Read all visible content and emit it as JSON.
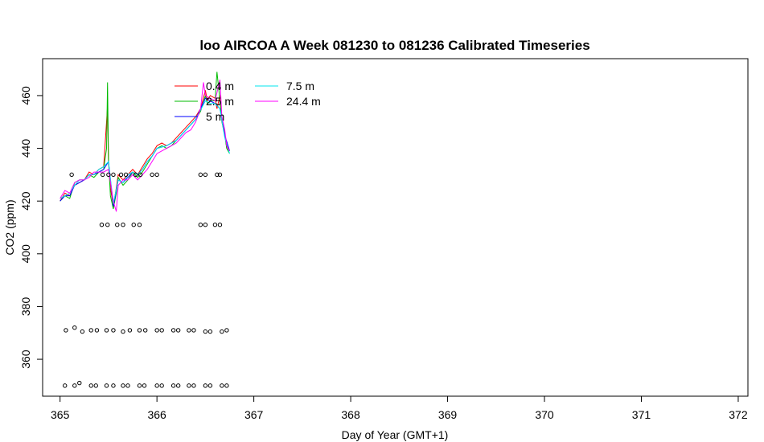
{
  "chart_data": {
    "type": "line",
    "title": "loo AIRCOA A  Week 081230 to 081236  Calibrated Timeseries",
    "xlabel": "Day of Year (GMT+1)",
    "ylabel": "CO2 (ppm)",
    "xlim": [
      364.82,
      372.1
    ],
    "ylim": [
      346,
      474
    ],
    "x_ticks": [
      365,
      366,
      367,
      368,
      369,
      370,
      371,
      372
    ],
    "y_ticks": [
      360,
      380,
      400,
      420,
      440,
      460
    ],
    "grid": false,
    "legend_position": "top-left",
    "series": [
      {
        "name": "0.4 m",
        "color": "#ff0000",
        "x": [
          365.0,
          365.05,
          365.1,
          365.15,
          365.2,
          365.25,
          365.3,
          365.35,
          365.4,
          365.45,
          365.48,
          365.49,
          365.5,
          365.52,
          365.55,
          365.58,
          365.6,
          365.65,
          365.7,
          365.75,
          365.8,
          365.85,
          365.9,
          365.95,
          366.0,
          366.05,
          366.1,
          366.15,
          366.2,
          366.25,
          366.3,
          366.35,
          366.4,
          366.45,
          366.5,
          366.52,
          366.55,
          366.6,
          366.62,
          366.65,
          366.67,
          366.7,
          366.72,
          366.75
        ],
        "y": [
          420,
          423,
          422,
          426,
          427,
          428,
          431,
          430,
          432,
          433,
          450,
          456,
          435,
          425,
          418,
          425,
          430,
          428,
          430,
          432,
          430,
          433,
          436,
          438,
          441,
          442,
          441,
          442,
          444,
          446,
          448,
          450,
          452,
          455,
          462,
          458,
          460,
          459,
          455,
          460,
          451,
          446,
          440,
          439
        ]
      },
      {
        "name": "2.5 m",
        "color": "#00bb00",
        "x": [
          365.0,
          365.05,
          365.1,
          365.15,
          365.2,
          365.25,
          365.3,
          365.35,
          365.4,
          365.45,
          365.48,
          365.49,
          365.5,
          365.52,
          365.55,
          365.58,
          365.6,
          365.65,
          365.7,
          365.75,
          365.8,
          365.85,
          365.9,
          365.95,
          366.0,
          366.05,
          366.1,
          366.15,
          366.2,
          366.25,
          366.3,
          366.35,
          366.4,
          366.45,
          366.5,
          366.52,
          366.55,
          366.6,
          366.62,
          366.65,
          366.67,
          366.7,
          366.72,
          366.75
        ],
        "y": [
          420,
          422,
          421,
          427,
          428,
          428,
          430,
          429,
          431,
          432,
          440,
          465,
          436,
          422,
          417,
          423,
          429,
          426,
          428,
          431,
          429,
          431,
          434,
          437,
          440,
          441,
          440,
          441,
          443,
          445,
          447,
          449,
          451,
          454,
          460,
          457,
          458,
          458,
          469,
          458,
          450,
          445,
          440,
          438
        ]
      },
      {
        "name": "5 m",
        "color": "#0000ff",
        "x": [
          365.0,
          365.05,
          365.1,
          365.15,
          365.2,
          365.25,
          365.3,
          365.35,
          365.4,
          365.45,
          365.5,
          365.55,
          365.6,
          365.65,
          365.7,
          365.75,
          365.8,
          365.85,
          365.9,
          365.95,
          366.0,
          366.1,
          366.2,
          366.3,
          366.4,
          366.5,
          366.55,
          366.6,
          366.65,
          366.7,
          366.75
        ],
        "y": [
          420,
          422,
          422,
          426,
          427,
          428,
          430,
          430,
          431,
          432,
          435,
          418,
          428,
          427,
          429,
          431,
          430,
          432,
          435,
          437,
          440,
          441,
          443,
          447,
          451,
          459,
          458,
          457,
          455,
          445,
          439
        ]
      },
      {
        "name": "7.5 m",
        "color": "#00e5ee",
        "x": [
          365.0,
          365.05,
          365.1,
          365.15,
          365.2,
          365.25,
          365.3,
          365.35,
          365.4,
          365.45,
          365.5,
          365.55,
          365.6,
          365.65,
          365.7,
          365.75,
          365.8,
          365.85,
          365.9,
          365.95,
          366.0,
          366.1,
          366.2,
          366.3,
          366.4,
          366.5,
          366.55,
          366.6,
          366.65,
          366.7,
          366.75
        ],
        "y": [
          421,
          422,
          423,
          426,
          428,
          428,
          430,
          430,
          432,
          433,
          435,
          419,
          428,
          427,
          430,
          431,
          430,
          432,
          435,
          437,
          440,
          441,
          443,
          447,
          451,
          458,
          457,
          457,
          455,
          444,
          438
        ]
      },
      {
        "name": "24.4 m",
        "color": "#ff00ff",
        "x": [
          365.0,
          365.05,
          365.1,
          365.15,
          365.2,
          365.25,
          365.3,
          365.35,
          365.4,
          365.45,
          365.5,
          365.55,
          365.58,
          365.6,
          365.65,
          365.7,
          365.75,
          365.8,
          365.85,
          365.9,
          365.95,
          366.0,
          366.05,
          366.1,
          366.15,
          366.2,
          366.25,
          366.3,
          366.35,
          366.4,
          366.45,
          366.48,
          366.5,
          366.55,
          366.6,
          366.65,
          366.67,
          366.7,
          366.72,
          366.75
        ],
        "y": [
          421,
          424,
          423,
          427,
          428,
          428,
          429,
          431,
          431,
          431,
          432,
          420,
          416,
          426,
          428,
          428,
          430,
          428,
          430,
          432,
          435,
          438,
          439,
          440,
          441,
          442,
          444,
          446,
          447,
          450,
          455,
          465,
          460,
          459,
          458,
          466,
          452,
          447,
          441,
          439
        ]
      }
    ],
    "markers": {
      "type": "circle",
      "color": "#000000",
      "points": [
        [
          365.05,
          350
        ],
        [
          365.15,
          350
        ],
        [
          365.2,
          351
        ],
        [
          365.32,
          350
        ],
        [
          365.37,
          350
        ],
        [
          365.48,
          350
        ],
        [
          365.55,
          350
        ],
        [
          365.65,
          350
        ],
        [
          365.7,
          350
        ],
        [
          365.82,
          350
        ],
        [
          365.87,
          350
        ],
        [
          366.0,
          350
        ],
        [
          366.05,
          350
        ],
        [
          366.17,
          350
        ],
        [
          366.22,
          350
        ],
        [
          366.33,
          350
        ],
        [
          366.38,
          350
        ],
        [
          366.5,
          350
        ],
        [
          366.55,
          350
        ],
        [
          366.67,
          350
        ],
        [
          366.72,
          350
        ],
        [
          365.06,
          371
        ],
        [
          365.15,
          372
        ],
        [
          365.23,
          370.5
        ],
        [
          365.32,
          371
        ],
        [
          365.38,
          371
        ],
        [
          365.48,
          371
        ],
        [
          365.55,
          371
        ],
        [
          365.65,
          370.5
        ],
        [
          365.72,
          371
        ],
        [
          365.82,
          371
        ],
        [
          365.88,
          371
        ],
        [
          366.0,
          371
        ],
        [
          366.05,
          371
        ],
        [
          366.17,
          371
        ],
        [
          366.22,
          371
        ],
        [
          366.33,
          371
        ],
        [
          366.38,
          371
        ],
        [
          366.5,
          370.5
        ],
        [
          366.55,
          370.5
        ],
        [
          366.67,
          370.5
        ],
        [
          366.72,
          371
        ],
        [
          365.43,
          411
        ],
        [
          365.49,
          411
        ],
        [
          365.59,
          411
        ],
        [
          365.65,
          411
        ],
        [
          365.76,
          411
        ],
        [
          365.82,
          411
        ],
        [
          366.45,
          411
        ],
        [
          366.5,
          411
        ],
        [
          366.6,
          411
        ],
        [
          366.65,
          411
        ],
        [
          365.12,
          430
        ],
        [
          365.44,
          430
        ],
        [
          365.5,
          430
        ],
        [
          365.55,
          430
        ],
        [
          365.63,
          430
        ],
        [
          365.68,
          430
        ],
        [
          365.78,
          430
        ],
        [
          365.83,
          430
        ],
        [
          365.95,
          430
        ],
        [
          366.0,
          430
        ],
        [
          366.45,
          430
        ],
        [
          366.5,
          430
        ],
        [
          366.62,
          430
        ],
        [
          366.65,
          430
        ]
      ]
    }
  }
}
